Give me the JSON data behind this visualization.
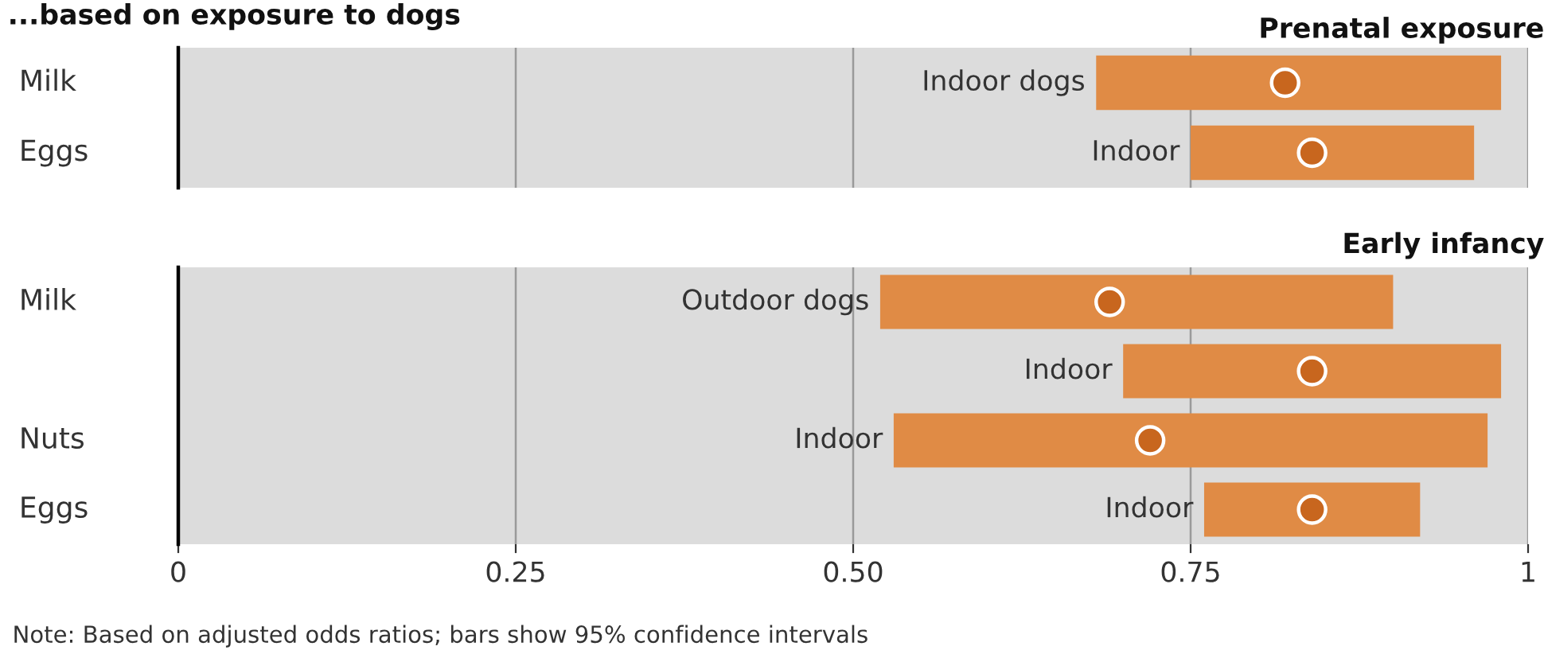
{
  "chart_data": [
    {
      "type": "bar",
      "orientation": "horizontal",
      "title": "...based on exposure to dogs",
      "subtitle": "Prenatal exposure",
      "categories": [
        "Milk",
        "Eggs"
      ],
      "xlim": [
        0,
        1
      ],
      "xticks": [
        0,
        0.25,
        0.5,
        0.75,
        1
      ],
      "grid": "x",
      "tick_labels": "y",
      "series": [
        {
          "type": "bar",
          "color": "#e08b45",
          "base": [
            0.68,
            0.75
          ],
          "values": [
            0.3,
            0.21
          ],
          "value_labels": [
            "Indoor dogs",
            "Indoor"
          ]
        },
        {
          "type": "scatter",
          "color": "#c8661e",
          "marker": "circle",
          "values": [
            0.82,
            0.84
          ]
        }
      ]
    },
    {
      "type": "bar",
      "orientation": "horizontal",
      "subtitle": "Early infancy",
      "categories": [
        "Milk",
        null,
        "Nuts",
        "Eggs"
      ],
      "xlim": [
        0,
        1
      ],
      "xticks": [
        0,
        0.25,
        {
          "value": 0.5,
          "label": "0.50"
        },
        0.75,
        1
      ],
      "grid": "x",
      "annotations": [
        "Note: Based on adjusted odds ratios; bars show 95% confidence intervals"
      ],
      "series": [
        {
          "type": "bar",
          "color": "#e08b45",
          "base": [
            0.52,
            0.7,
            0.53,
            0.76
          ],
          "values": [
            0.38,
            0.28,
            0.44,
            0.16
          ],
          "value_labels": [
            "Outdoor dogs",
            "Indoor",
            "Indoor",
            "Indoor"
          ]
        },
        {
          "type": "scatter",
          "color": "#c8661e",
          "marker": "circle",
          "values": [
            0.69,
            0.84,
            0.72,
            0.84
          ]
        }
      ]
    }
  ]
}
